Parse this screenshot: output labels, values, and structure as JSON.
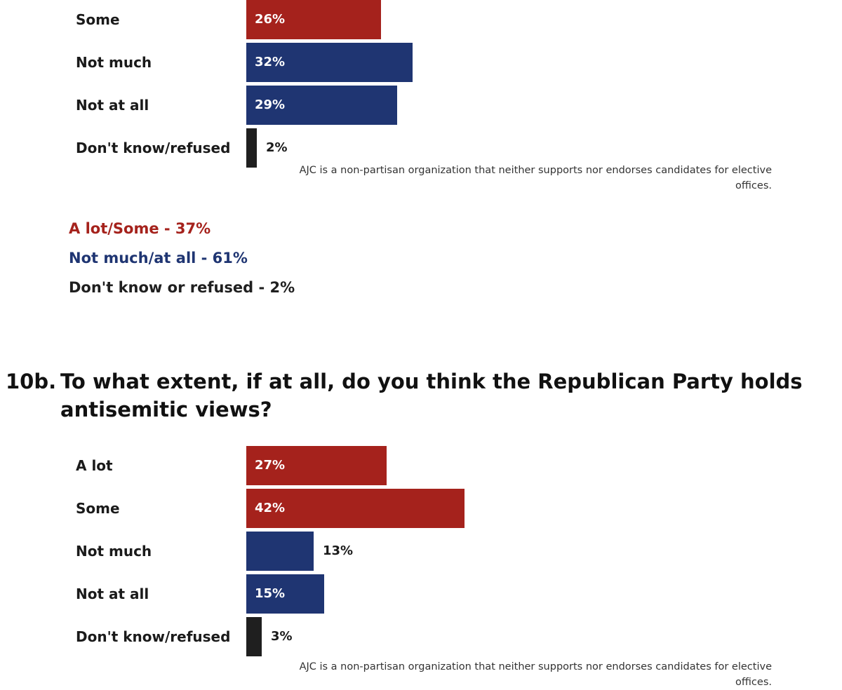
{
  "colors": {
    "red": "#a5221c",
    "blue": "#1f3572",
    "black": "#1f1f1f"
  },
  "chart_data": [
    {
      "type": "bar",
      "orientation": "horizontal",
      "categories": [
        "Some",
        "Not much",
        "Not at all",
        "Don't know/refused"
      ],
      "values": [
        26,
        32,
        29,
        2
      ],
      "value_labels": [
        "26%",
        "32%",
        "29%",
        "2%"
      ],
      "bar_colors": [
        "red",
        "blue",
        "blue",
        "black"
      ],
      "unit": "%",
      "note": "AJC is a non-partisan organization that neither supports nor endorses candidates for elective offices."
    },
    {
      "type": "bar",
      "orientation": "horizontal",
      "title": "To what extent, if at all, do you think the Republican Party holds antisemitic views?",
      "categories": [
        "A lot",
        "Some",
        "Not much",
        "Not at all",
        "Don't know/refused"
      ],
      "values": [
        27,
        42,
        13,
        15,
        3
      ],
      "value_labels": [
        "27%",
        "42%",
        "13%",
        "15%",
        "3%"
      ],
      "bar_colors": [
        "red",
        "red",
        "blue",
        "blue",
        "black"
      ],
      "unit": "%",
      "note": "AJC is a non-partisan organization that neither supports nor endorses candidates for elective offices."
    }
  ],
  "summary": [
    {
      "text": "A lot/Some - 37%",
      "color": "red"
    },
    {
      "text": "Not much/at all - 61%",
      "color": "blue"
    },
    {
      "text": "Don't know or refused - 2%",
      "color": "black"
    }
  ],
  "question": {
    "number": "10b.",
    "text": "To what extent, if at all, do you think the Republican Party holds antisemitic views?"
  }
}
